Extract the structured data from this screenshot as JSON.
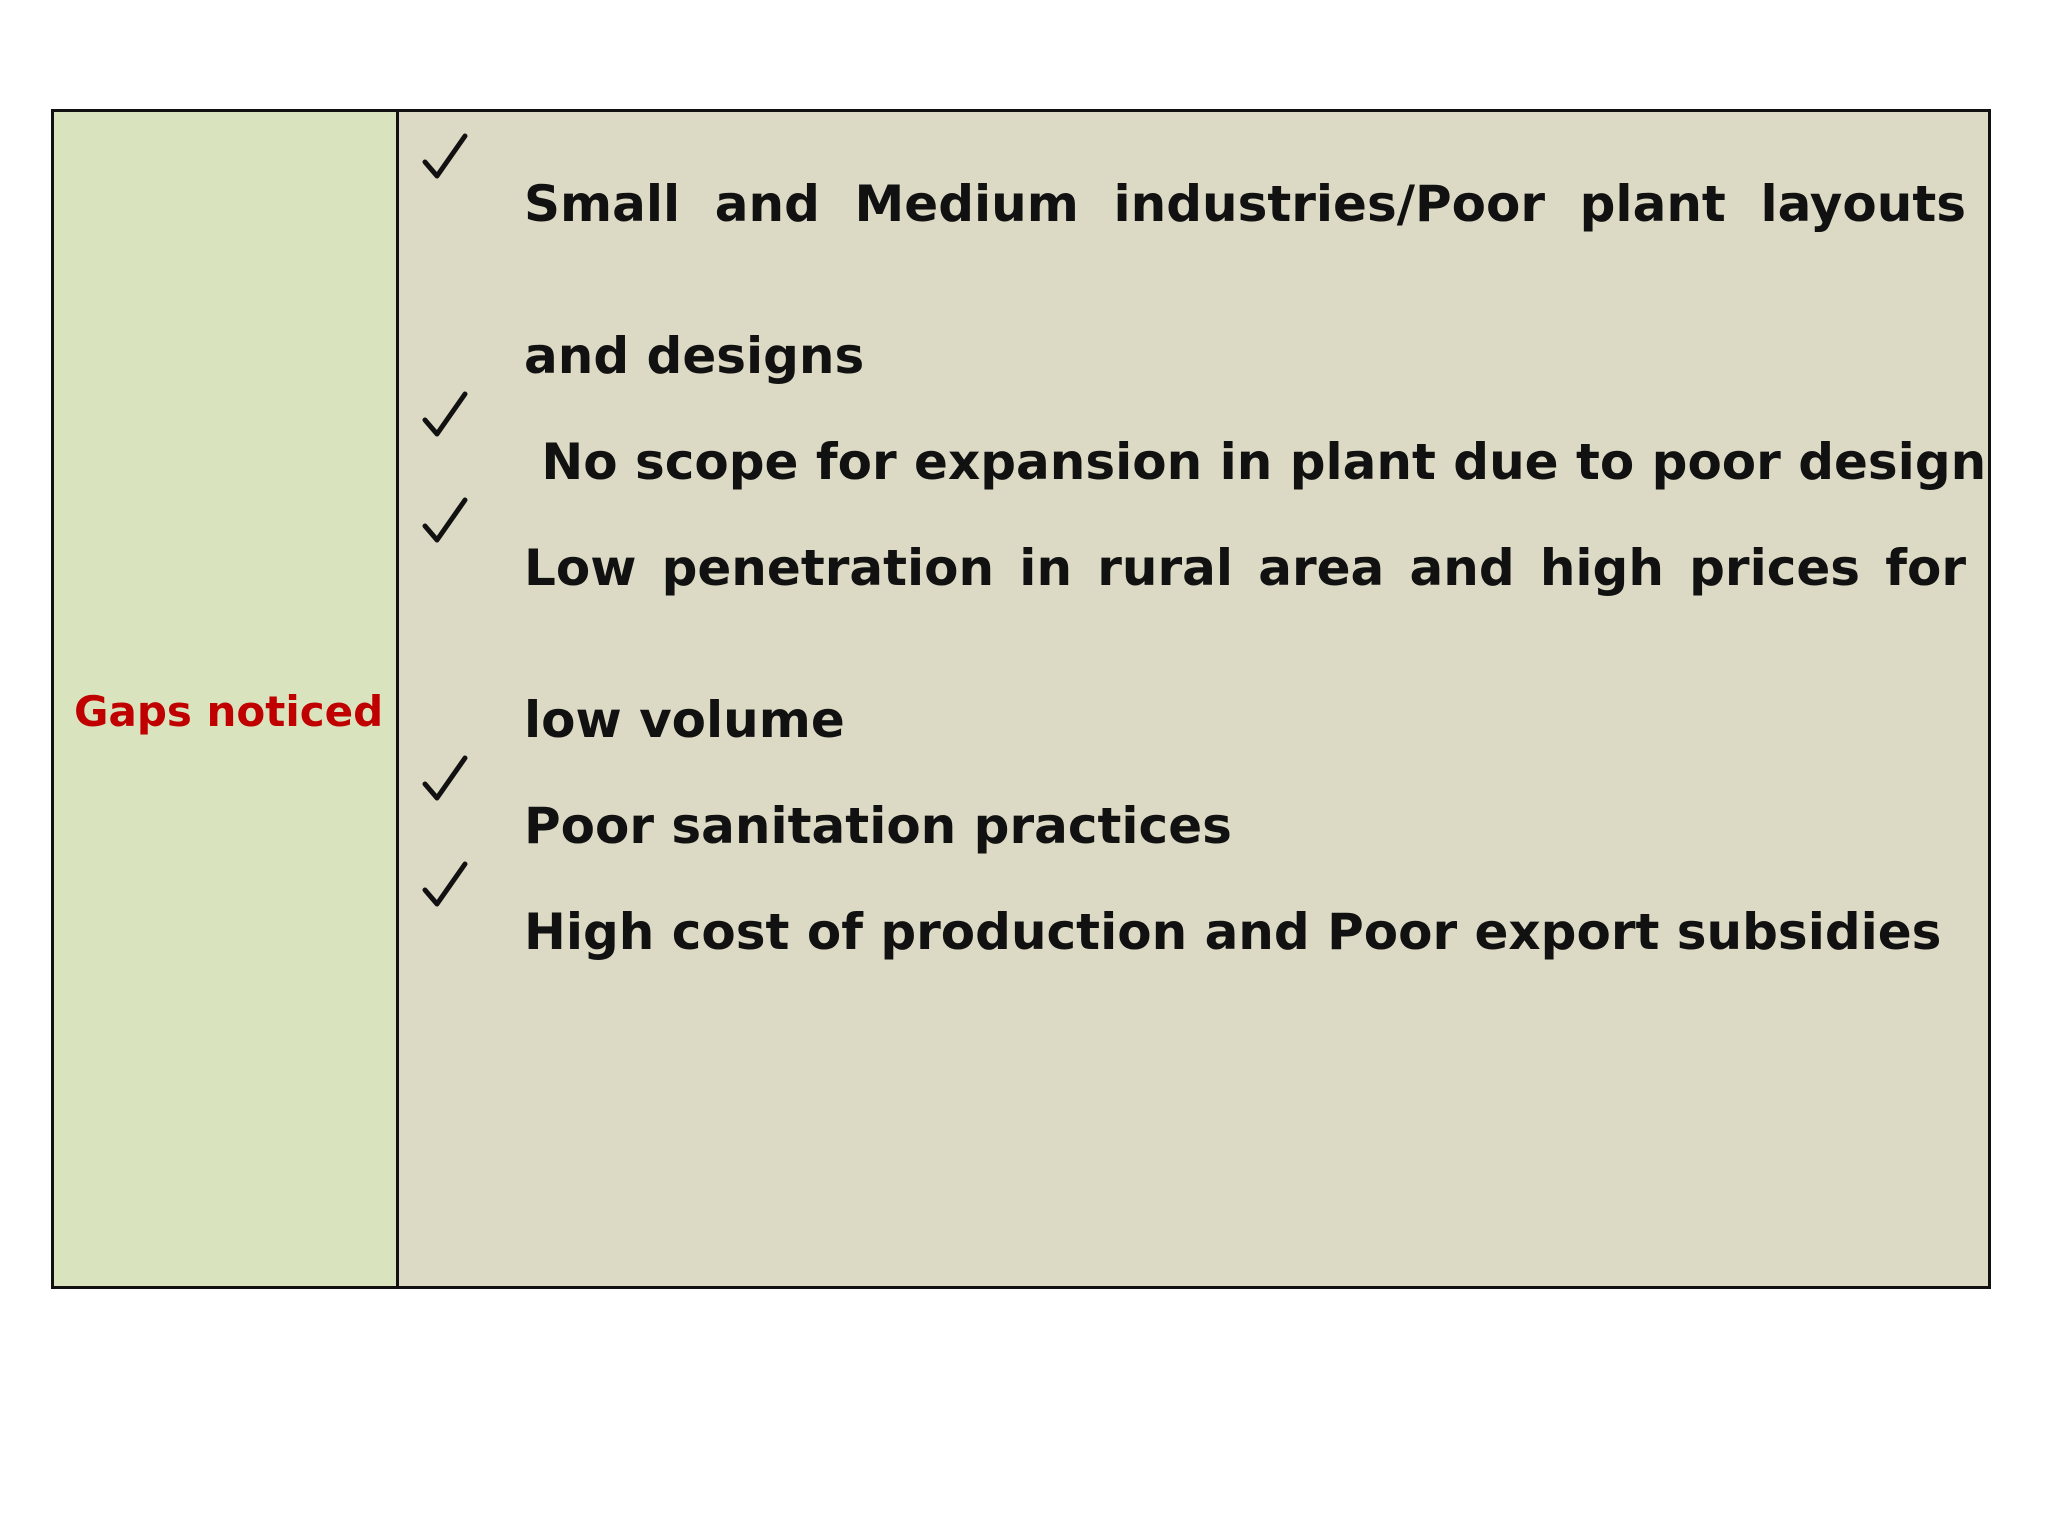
{
  "label": {
    "text": "Gaps noticed",
    "color": "#c00000"
  },
  "items": [
    {
      "icon": "check-mark",
      "text": "Small and Medium industries/Poor plant layouts and designs"
    },
    {
      "icon": "check-mark",
      "text": " No scope for expansion in plant due to poor design"
    },
    {
      "icon": "check-mark",
      "text": "Low penetration in rural area and high prices for low volume"
    },
    {
      "icon": "check-mark",
      "text": "Poor sanitation practices"
    },
    {
      "icon": "check-mark",
      "text": "High cost of production and Poor export subsidies"
    }
  ],
  "colors": {
    "label_cell_bg": "#d9e3be",
    "content_cell_bg": "#dcd9c4",
    "border": "#111111"
  }
}
